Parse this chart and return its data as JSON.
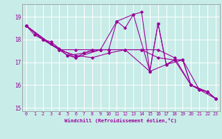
{
  "xlabel": "Windchill (Refroidissement éolien,°C)",
  "background_color": "#c8ece8",
  "grid_color": "#ffffff",
  "line_color": "#990099",
  "spine_color": "#888888",
  "xlim": [
    -0.5,
    23.5
  ],
  "ylim": [
    14.85,
    19.55
  ],
  "xticks": [
    0,
    1,
    2,
    3,
    4,
    5,
    6,
    7,
    8,
    9,
    10,
    11,
    12,
    13,
    14,
    15,
    16,
    17,
    18,
    19,
    20,
    21,
    22,
    23
  ],
  "yticks": [
    15,
    16,
    17,
    18,
    19
  ],
  "lines": [
    {
      "x": [
        0,
        1,
        2,
        3,
        4,
        5,
        6,
        7,
        8,
        9,
        10,
        11,
        12,
        13,
        14,
        15,
        16,
        17,
        18,
        19,
        20,
        21,
        22,
        23
      ],
      "y": [
        18.6,
        18.2,
        18.0,
        17.9,
        17.6,
        17.3,
        17.2,
        17.4,
        17.55,
        17.55,
        17.55,
        18.8,
        18.5,
        19.1,
        19.2,
        16.6,
        18.7,
        16.9,
        17.1,
        17.1,
        16.0,
        15.8,
        15.7,
        15.4
      ]
    },
    {
      "x": [
        0,
        2,
        4,
        6,
        8,
        10,
        12,
        14,
        16,
        18,
        20,
        22,
        23
      ],
      "y": [
        18.6,
        18.0,
        17.55,
        17.55,
        17.55,
        17.55,
        17.55,
        17.55,
        17.55,
        17.2,
        16.0,
        15.7,
        15.4
      ]
    },
    {
      "x": [
        0,
        2,
        4,
        6,
        8,
        10,
        12,
        14,
        16,
        18,
        20,
        22,
        23
      ],
      "y": [
        18.6,
        18.0,
        17.55,
        17.3,
        17.2,
        17.4,
        17.55,
        17.55,
        17.2,
        17.1,
        16.0,
        15.7,
        15.4
      ]
    },
    {
      "x": [
        0,
        3,
        5,
        7,
        9,
        11,
        13,
        15,
        17,
        19,
        21,
        23
      ],
      "y": [
        18.6,
        17.8,
        17.3,
        17.4,
        17.55,
        18.8,
        19.1,
        16.6,
        16.9,
        17.1,
        15.8,
        15.4
      ]
    },
    {
      "x": [
        0,
        3,
        6,
        9,
        12,
        15,
        16,
        17,
        18,
        19,
        20,
        21,
        22,
        23
      ],
      "y": [
        18.6,
        17.8,
        17.2,
        17.55,
        17.55,
        16.6,
        18.7,
        16.9,
        17.1,
        17.1,
        16.0,
        15.8,
        15.7,
        15.4
      ]
    }
  ]
}
